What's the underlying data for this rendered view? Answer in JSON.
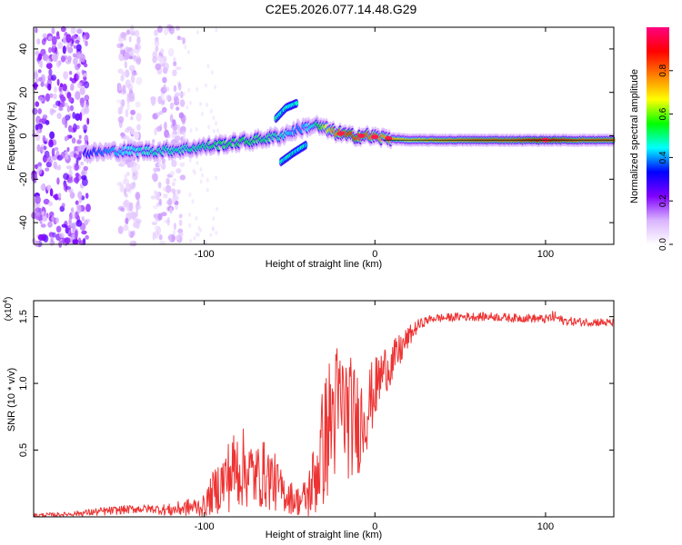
{
  "title": "C2E5.2026.077.14.48.G29",
  "chart_data": [
    {
      "type": "heatmap",
      "title": "C2E5.2026.077.14.48.G29",
      "xlabel": "Height of straight line (km)",
      "ylabel": "Frequency (Hz)",
      "xlim": [
        -200,
        140
      ],
      "ylim": [
        -50,
        50
      ],
      "xticks": [
        -100,
        0,
        100
      ],
      "yticks": [
        -40,
        -20,
        0,
        20,
        40
      ],
      "colorbar": {
        "label": "Normalized spectral amplitude",
        "range": [
          0.0,
          1.0
        ],
        "ticks": [
          "0.0",
          "0.2",
          "0.4",
          "0.6",
          "0.8"
        ],
        "colors": [
          "#ffffff",
          "#d9b3ff",
          "#8000ff",
          "#0000ff",
          "#00ffff",
          "#00ff00",
          "#ffff00",
          "#ff8000",
          "#ff0000",
          "#ff0080"
        ]
      },
      "ridge": {
        "description": "dominant frequency ridge vs height",
        "x": [
          -170,
          -150,
          -130,
          -110,
          -90,
          -70,
          -55,
          -45,
          -35,
          -25,
          -15,
          -5,
          5,
          20,
          40,
          60,
          80,
          100,
          120,
          140
        ],
        "y": [
          -8,
          -7,
          -7,
          -6,
          -4,
          -2,
          0,
          3,
          5,
          2,
          0,
          0,
          -1,
          -2,
          -2,
          -2,
          -2,
          -2,
          -2,
          -2
        ],
        "amplitude": [
          0.35,
          0.45,
          0.5,
          0.5,
          0.55,
          0.55,
          0.5,
          0.4,
          0.5,
          0.8,
          0.9,
          0.85,
          0.8,
          0.75,
          0.8,
          0.85,
          0.85,
          0.95,
          0.85,
          0.85
        ]
      },
      "branches": [
        {
          "x": [
            -58,
            -52,
            -46
          ],
          "y": [
            8,
            13,
            15
          ]
        },
        {
          "x": [
            -55,
            -48,
            -40
          ],
          "y": [
            -12,
            -8,
            -4
          ]
        }
      ],
      "noise_bands_km": [
        [
          -200,
          -168
        ],
        [
          -150,
          -138
        ],
        [
          -130,
          -112
        ]
      ]
    },
    {
      "type": "line",
      "xlabel": "Height of straight line (km)",
      "ylabel": "SNR (10 * v/v)",
      "y_multiplier": "(x10",
      "y_multiplier_exp": "4",
      "y_multiplier_close": ")",
      "xlim": [
        -200,
        140
      ],
      "ylim": [
        0,
        1.62
      ],
      "xticks": [
        -100,
        0,
        100
      ],
      "yticks": [
        0.5,
        1.0,
        1.5
      ],
      "ytick_labels": [
        "0.5",
        "1.0",
        "1.5"
      ],
      "color": "#ee3333",
      "series": [
        {
          "name": "SNR",
          "x": [
            -200,
            -180,
            -160,
            -140,
            -130,
            -120,
            -110,
            -100,
            -95,
            -90,
            -85,
            -80,
            -75,
            -70,
            -65,
            -60,
            -55,
            -50,
            -45,
            -40,
            -35,
            -30,
            -25,
            -20,
            -15,
            -10,
            -5,
            0,
            5,
            10,
            15,
            20,
            25,
            30,
            35,
            40,
            50,
            60,
            70,
            80,
            90,
            100,
            105,
            110,
            120,
            130,
            140
          ],
          "y": [
            0.01,
            0.02,
            0.04,
            0.06,
            0.06,
            0.05,
            0.07,
            0.08,
            0.18,
            0.25,
            0.32,
            0.38,
            0.35,
            0.3,
            0.32,
            0.28,
            0.2,
            0.15,
            0.12,
            0.14,
            0.3,
            0.55,
            0.75,
            0.85,
            0.75,
            0.7,
            0.8,
            0.95,
            1.1,
            1.15,
            1.25,
            1.35,
            1.43,
            1.47,
            1.49,
            1.49,
            1.5,
            1.5,
            1.5,
            1.49,
            1.49,
            1.48,
            1.5,
            1.47,
            1.46,
            1.46,
            1.45
          ],
          "noise": [
            0.01,
            0.01,
            0.02,
            0.02,
            0.02,
            0.03,
            0.04,
            0.05,
            0.1,
            0.14,
            0.18,
            0.2,
            0.18,
            0.15,
            0.16,
            0.15,
            0.1,
            0.08,
            0.07,
            0.1,
            0.2,
            0.3,
            0.35,
            0.3,
            0.3,
            0.25,
            0.2,
            0.15,
            0.12,
            0.1,
            0.08,
            0.05,
            0.03,
            0.02,
            0.02,
            0.02,
            0.02,
            0.02,
            0.02,
            0.02,
            0.02,
            0.02,
            0.03,
            0.02,
            0.02,
            0.02,
            0.02
          ]
        }
      ]
    }
  ]
}
